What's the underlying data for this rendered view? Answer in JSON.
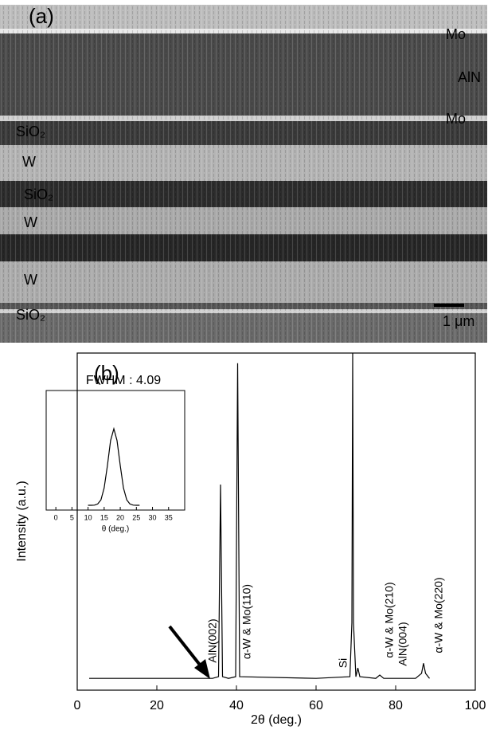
{
  "sem_image": {
    "panel_label": "(a)",
    "layer_labels": [
      "Mo",
      "AlN",
      "Mo",
      "SiO₂",
      "W",
      "SiO₂",
      "W",
      "W",
      "SiO₂"
    ],
    "scale_bar": "1 μm"
  },
  "chart_data": [
    {
      "type": "line",
      "panel_label": "(b)",
      "x_label": "2θ (deg.)",
      "y_label": "Intensity (a.u.)",
      "xlim": [
        0,
        100
      ],
      "xticks": [
        0,
        20,
        40,
        60,
        80,
        100
      ],
      "ylim": [
        0,
        100
      ],
      "color": "#000000",
      "x": [
        3,
        34,
        35.5,
        36,
        36.5,
        38,
        39.8,
        40.3,
        40.8,
        60,
        68.5,
        69,
        69.2,
        69.4,
        70,
        70.5,
        71,
        75,
        76,
        77,
        85,
        86.5,
        87,
        87.5,
        88.5
      ],
      "values": [
        3.5,
        3.5,
        4,
        61,
        4,
        3.5,
        4,
        97,
        4,
        3.5,
        4,
        20,
        100,
        20,
        4,
        6.6,
        4,
        3.5,
        4.5,
        3.5,
        3.5,
        5,
        8,
        5,
        3.5
      ],
      "annotations": [
        "AlN(002)",
        "α-W & Mo(110)",
        "Si",
        "α-W & Mo(210)",
        "AlN(004)",
        "α-W & Mo(220)"
      ]
    },
    {
      "type": "line",
      "title": "FWHM : 4.09",
      "x_label": "θ (deg.)",
      "xlim": [
        -3,
        40
      ],
      "xticks": [
        0,
        5,
        10,
        15,
        20,
        25,
        30,
        35
      ],
      "ylim": [
        0,
        100
      ],
      "color": "#000000",
      "x": [
        10,
        11,
        12,
        13,
        14,
        15,
        16,
        17,
        18,
        19,
        20,
        21,
        22,
        23,
        24,
        25,
        26
      ],
      "values": [
        5,
        5,
        5.2,
        6.3,
        10.7,
        23,
        46.3,
        72.7,
        85,
        72.7,
        46.3,
        23,
        10.7,
        6.3,
        5.2,
        5,
        5
      ]
    }
  ]
}
